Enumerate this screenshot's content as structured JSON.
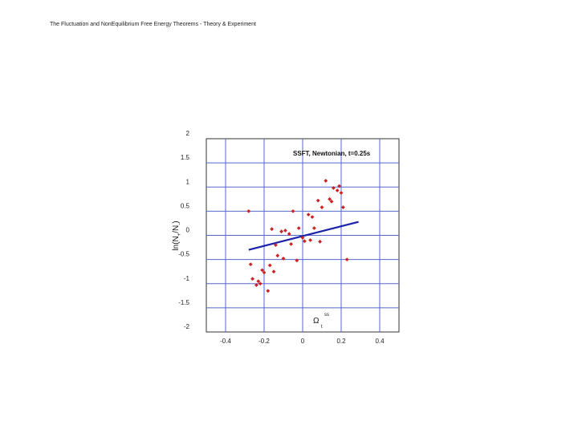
{
  "slide": {
    "header": "The Fluctuation and NonEquilibrium Free Energy Theorems - Theory & Experiment"
  },
  "colors": {
    "grid": "#5566cc",
    "points": "#cc2222",
    "fit_line": "#1a22aa",
    "frame": "#333333"
  },
  "chart_data": {
    "type": "scatter",
    "title": "SSFT, Newtonian, t=0.25s",
    "xlabel": {
      "main": "Ω",
      "sub": "t",
      "sup": "ss"
    },
    "ylabel": {
      "main": "ln(N",
      "sub1": "+",
      "mid": "/N",
      "sub2": "-",
      "end": ")"
    },
    "xlim": [
      -0.5,
      0.5
    ],
    "ylim": [
      -2,
      2
    ],
    "xticks": [
      -0.4,
      -0.2,
      0,
      0.2,
      0.4
    ],
    "xtick_labels": [
      "-0.4",
      "-0.2",
      "0",
      "0.2",
      "0.4"
    ],
    "yticks": [
      -2,
      -1.5,
      -1,
      -0.5,
      0,
      0.5,
      1,
      1.5,
      2
    ],
    "ytick_labels": [
      "-2",
      "-1.5",
      "-1",
      "-0.5",
      "0",
      "0.5",
      "1",
      "1.5",
      "2"
    ],
    "grid": true,
    "points": [
      {
        "x": -0.28,
        "y": 0.5
      },
      {
        "x": -0.27,
        "y": -0.6
      },
      {
        "x": -0.26,
        "y": -0.9
      },
      {
        "x": -0.24,
        "y": -1.03
      },
      {
        "x": -0.23,
        "y": -0.95
      },
      {
        "x": -0.22,
        "y": -1.0
      },
      {
        "x": -0.21,
        "y": -0.72
      },
      {
        "x": -0.2,
        "y": -0.77
      },
      {
        "x": -0.18,
        "y": -1.15
      },
      {
        "x": -0.17,
        "y": -0.62
      },
      {
        "x": -0.16,
        "y": 0.13
      },
      {
        "x": -0.15,
        "y": -0.75
      },
      {
        "x": -0.14,
        "y": -0.2
      },
      {
        "x": -0.13,
        "y": -0.42
      },
      {
        "x": -0.11,
        "y": 0.08
      },
      {
        "x": -0.1,
        "y": -0.48
      },
      {
        "x": -0.09,
        "y": 0.1
      },
      {
        "x": -0.07,
        "y": 0.03
      },
      {
        "x": -0.06,
        "y": -0.18
      },
      {
        "x": -0.05,
        "y": 0.5
      },
      {
        "x": -0.03,
        "y": -0.52
      },
      {
        "x": -0.02,
        "y": 0.15
      },
      {
        "x": 0.0,
        "y": -0.05
      },
      {
        "x": 0.01,
        "y": -0.12
      },
      {
        "x": 0.03,
        "y": 0.43
      },
      {
        "x": 0.04,
        "y": -0.1
      },
      {
        "x": 0.05,
        "y": 0.38
      },
      {
        "x": 0.06,
        "y": 0.15
      },
      {
        "x": 0.08,
        "y": 0.72
      },
      {
        "x": 0.09,
        "y": -0.13
      },
      {
        "x": 0.1,
        "y": 0.58
      },
      {
        "x": 0.12,
        "y": 1.13
      },
      {
        "x": 0.14,
        "y": 0.75
      },
      {
        "x": 0.15,
        "y": 0.7
      },
      {
        "x": 0.16,
        "y": 0.98
      },
      {
        "x": 0.18,
        "y": 0.93
      },
      {
        "x": 0.19,
        "y": 1.02
      },
      {
        "x": 0.2,
        "y": 0.88
      },
      {
        "x": 0.21,
        "y": 0.58
      },
      {
        "x": 0.23,
        "y": -0.5
      }
    ],
    "fit_line": {
      "x": [
        -0.28,
        0.29
      ],
      "y": [
        -0.3,
        0.28
      ]
    }
  }
}
